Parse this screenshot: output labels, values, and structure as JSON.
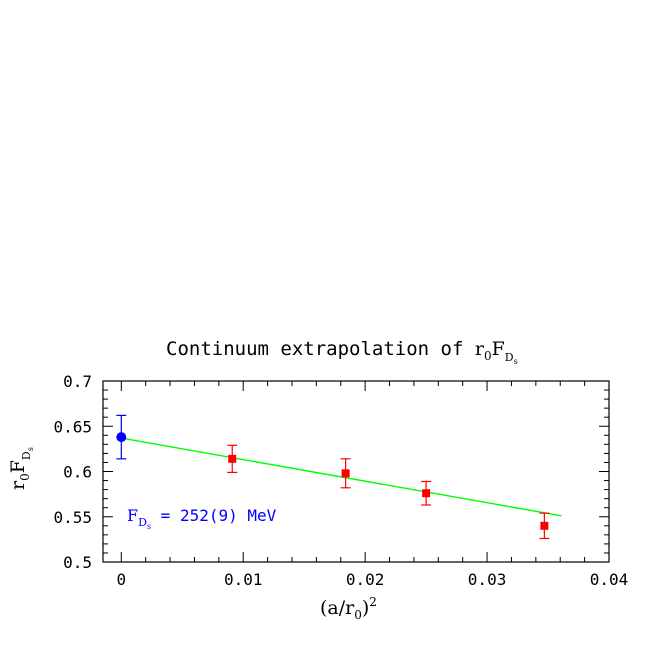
{
  "chart_data": {
    "type": "scatter",
    "title": {
      "prefix": "Continuum extrapolation of ",
      "symbol": "r",
      "sub1": "0",
      "main2": "F",
      "sub2": "D",
      "subsub": "s"
    },
    "xlabel": {
      "prefix": "(a/r",
      "sub": "0",
      "suffix": ")",
      "sup": "2"
    },
    "ylabel": {
      "r": "r",
      "sub0": "0",
      "F": "F",
      "subD": "D",
      "subsub": "s"
    },
    "xlim": [
      -0.0015,
      0.04
    ],
    "ylim": [
      0.5,
      0.7
    ],
    "xticks": [
      {
        "value": 0,
        "label": "0"
      },
      {
        "value": 0.01,
        "label": "0.01"
      },
      {
        "value": 0.02,
        "label": "0.02"
      },
      {
        "value": 0.03,
        "label": "0.03"
      },
      {
        "value": 0.04,
        "label": "0.04"
      }
    ],
    "yticks": [
      {
        "value": 0.5,
        "label": "0.5"
      },
      {
        "value": 0.55,
        "label": "0.55"
      },
      {
        "value": 0.6,
        "label": "0.6"
      },
      {
        "value": 0.65,
        "label": "0.65"
      },
      {
        "value": 0.7,
        "label": "0.7"
      }
    ],
    "series": [
      {
        "marker": "square",
        "color": "#ff0000",
        "points": [
          {
            "x": 0.0091,
            "y": 0.614,
            "err": 0.015
          },
          {
            "x": 0.0184,
            "y": 0.598,
            "err": 0.016
          },
          {
            "x": 0.025,
            "y": 0.576,
            "err": 0.013
          },
          {
            "x": 0.0347,
            "y": 0.54,
            "err": 0.014
          }
        ]
      },
      {
        "marker": "circle",
        "color": "#0000ff",
        "points": [
          {
            "x": 0,
            "y": 0.638,
            "err": 0.024
          }
        ]
      }
    ],
    "fit_line": {
      "x0": 0,
      "y0": 0.637,
      "x1": 0.0361,
      "y1": 0.551,
      "color": "#00ff00"
    },
    "annotation": {
      "F": "F",
      "sub": "D",
      "subsub": "s",
      "text": " = 252(9) MeV",
      "color": "#0000ff"
    }
  }
}
